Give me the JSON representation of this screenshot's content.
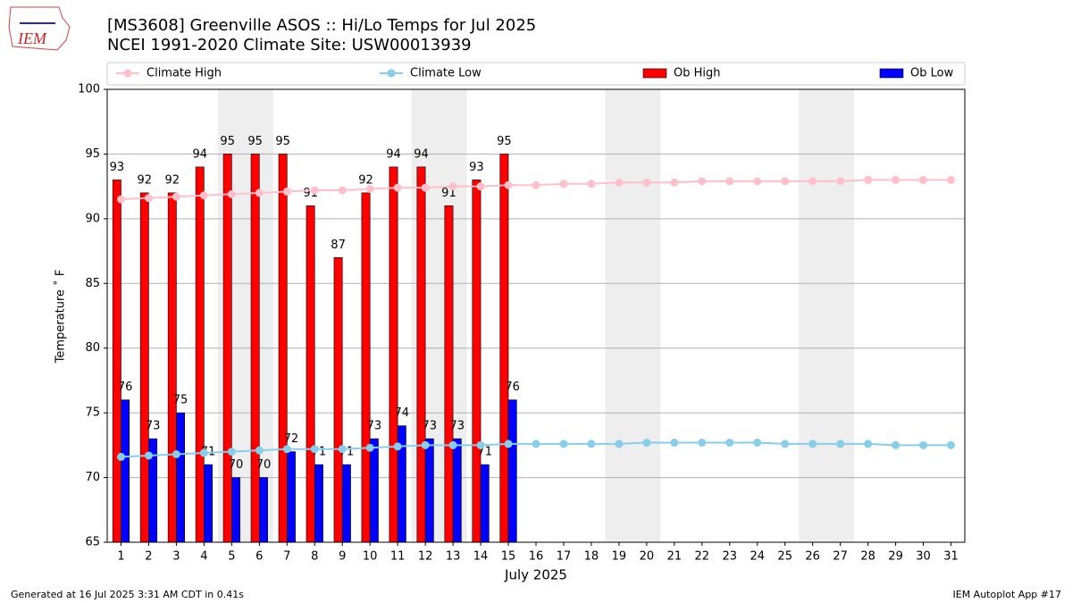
{
  "logo": "IEM",
  "chart_data": {
    "type": "bar",
    "title": "[MS3608] Greenville ASOS :: Hi/Lo Temps for Jul 2025",
    "subtitle": "NCEI 1991-2020 Climate Site: USW00013939",
    "x_label": "July 2025",
    "y_label": "Temperature ˚ F",
    "categories": [
      "1",
      "2",
      "3",
      "4",
      "5",
      "6",
      "7",
      "8",
      "9",
      "10",
      "11",
      "12",
      "13",
      "14",
      "15",
      "16",
      "17",
      "18",
      "19",
      "20",
      "21",
      "22",
      "23",
      "24",
      "25",
      "26",
      "27",
      "28",
      "29",
      "30",
      "31"
    ],
    "series": [
      {
        "name": "Climate High",
        "type": "line",
        "color": "#ffc0cb",
        "values": [
          91.5,
          91.6,
          91.7,
          91.8,
          91.9,
          92.0,
          92.1,
          92.2,
          92.2,
          92.3,
          92.4,
          92.4,
          92.5,
          92.5,
          92.6,
          92.6,
          92.7,
          92.7,
          92.8,
          92.8,
          92.8,
          92.9,
          92.9,
          92.9,
          92.9,
          92.9,
          92.9,
          93.0,
          93.0,
          93.0,
          93.0
        ]
      },
      {
        "name": "Climate Low",
        "type": "line",
        "color": "#87ceeb",
        "values": [
          71.6,
          71.7,
          71.8,
          71.9,
          72.0,
          72.1,
          72.2,
          72.2,
          72.2,
          72.3,
          72.4,
          72.5,
          72.5,
          72.5,
          72.6,
          72.6,
          72.6,
          72.6,
          72.6,
          72.7,
          72.7,
          72.7,
          72.7,
          72.7,
          72.6,
          72.6,
          72.6,
          72.6,
          72.5,
          72.5,
          72.5
        ]
      },
      {
        "name": "Ob High",
        "type": "bar",
        "color": "#ff0000",
        "values": [
          93,
          92,
          92,
          94,
          95,
          95,
          95,
          91,
          87,
          92,
          94,
          94,
          91,
          93,
          95,
          null,
          null,
          null,
          null,
          null,
          null,
          null,
          null,
          null,
          null,
          null,
          null,
          null,
          null,
          null,
          null
        ]
      },
      {
        "name": "Ob Low",
        "type": "bar",
        "color": "#0000ff",
        "values": [
          76,
          73,
          75,
          71,
          70,
          70,
          72,
          71,
          71,
          73,
          74,
          73,
          73,
          71,
          76,
          null,
          null,
          null,
          null,
          null,
          null,
          null,
          null,
          null,
          null,
          null,
          null,
          null,
          null,
          null,
          null
        ]
      }
    ],
    "ylim": [
      65,
      100
    ],
    "yticks": [
      65,
      70,
      75,
      80,
      85,
      90,
      95,
      100
    ],
    "grid": true,
    "legend": "top"
  },
  "footer": {
    "left": "Generated at 16 Jul 2025 3:31 AM CDT in 0.41s",
    "right": "IEM Autoplot App #17"
  }
}
